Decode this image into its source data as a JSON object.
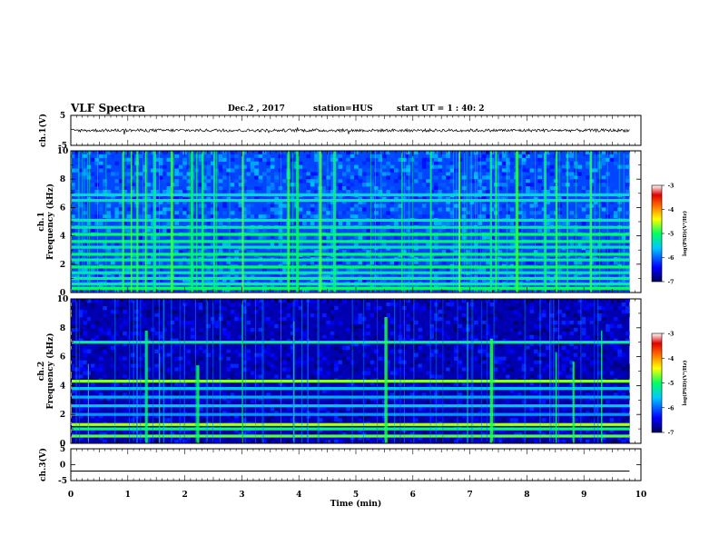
{
  "header": {
    "title": "VLF Spectra",
    "date": "Dec.2 , 2017",
    "station": "station=HUS",
    "start": "start UT = 1 : 40: 2"
  },
  "chart_data": [
    {
      "type": "line",
      "panel": "ch1-waveform",
      "ylabel": "ch.1(V)",
      "ylim": [
        -5,
        5
      ],
      "yticks": [
        "5",
        "-5"
      ],
      "description_values": {
        "baseline_V": 0,
        "noise_amplitude_V": 0.5
      }
    },
    {
      "type": "heatmap",
      "panel": "ch1-spectrogram",
      "ylabel_line1": "ch.1",
      "ylabel_line2": "Frequency (kHz)",
      "ylim": [
        0,
        10
      ],
      "yticks": [
        "0",
        "2",
        "4",
        "6",
        "8",
        "10"
      ],
      "xlim": [
        0,
        9.8
      ],
      "colorbar": {
        "label": "log(PSD)(V²/Hz)",
        "range": [
          -7,
          -3
        ],
        "ticks": [
          "-3",
          "-4",
          "-5",
          "-6",
          "-7"
        ]
      },
      "bands_kHz": [
        0.3,
        0.6,
        1.0,
        1.4,
        1.8,
        2.3,
        2.7,
        3.2,
        3.6,
        4.1,
        4.6,
        5.1,
        6.5,
        6.9
      ],
      "bursts_min": [
        0.9,
        1.05,
        1.15,
        1.3,
        1.45,
        1.75,
        2.1,
        2.2,
        2.3,
        2.5,
        3.0,
        3.8,
        3.95,
        4.35,
        4.6,
        5.8,
        6.3,
        6.8,
        7.35,
        7.45,
        7.8,
        8.3,
        8.5,
        8.7,
        9.1
      ]
    },
    {
      "type": "heatmap",
      "panel": "ch2-spectrogram",
      "ylabel_line1": "ch.2",
      "ylabel_line2": "Frequency (kHz)",
      "ylim": [
        0,
        10
      ],
      "yticks": [
        "0",
        "2",
        "4",
        "6",
        "8",
        "10"
      ],
      "xlim": [
        0,
        9.8
      ],
      "colorbar": {
        "label": "log(PSD)(V²/Hz)",
        "range": [
          -7,
          -3
        ],
        "ticks": [
          "-3",
          "-4",
          "-5",
          "-6",
          "-7"
        ]
      },
      "bands_kHz": [
        0.5,
        1.0,
        1.3,
        2.0,
        2.6,
        3.2,
        3.8,
        4.3,
        7.0
      ],
      "bursts_min": [
        0.3,
        1.3,
        1.55,
        2.2,
        3.0,
        3.9,
        5.5,
        6.95,
        7.35,
        8.5,
        8.8,
        9.3
      ]
    },
    {
      "type": "line",
      "panel": "ch3-waveform",
      "ylabel": "ch.3(V)",
      "ylim": [
        -5,
        5
      ],
      "yticks": [
        "5",
        "0",
        "-5"
      ],
      "description_values": {
        "constant_V": -2
      },
      "xlabel": "Time (min)",
      "xlim": [
        0,
        10
      ],
      "xticks": [
        "0",
        "1",
        "2",
        "3",
        "4",
        "5",
        "6",
        "7",
        "8",
        "9",
        "10"
      ]
    }
  ]
}
